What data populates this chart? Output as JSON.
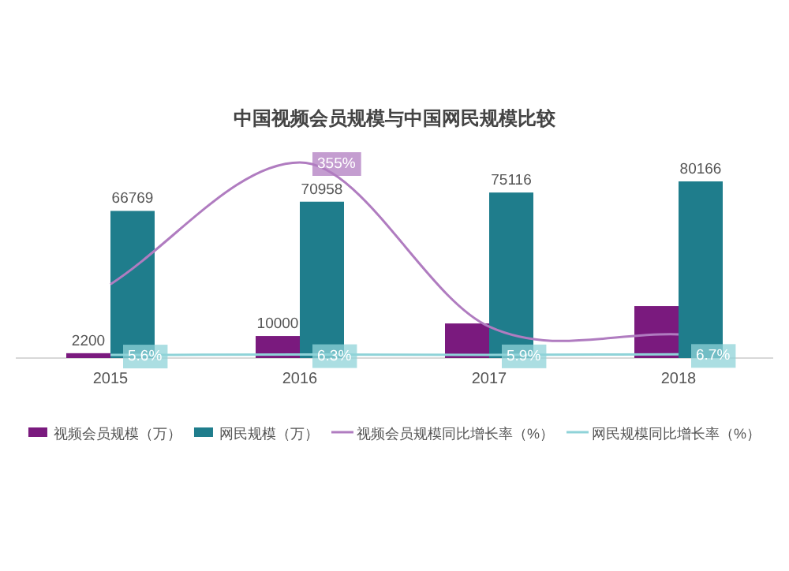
{
  "chart_data": {
    "type": "bar",
    "title": "中国视频会员规模与中国网民规模比较",
    "categories": [
      "2015",
      "2016",
      "2017",
      "2018"
    ],
    "legend": "bottom",
    "series": [
      {
        "name": "视频会员规模（万）",
        "color": "#7a1a7e",
        "values": [
          2200,
          10000,
          15700,
          23600
        ],
        "value_labels": [
          "2200",
          "10000",
          null,
          null
        ]
      },
      {
        "name": "网民规模（万）",
        "color": "#1f7d8c",
        "values": [
          66769,
          70958,
          75116,
          80166
        ],
        "value_labels": [
          "66769",
          "70958",
          "75116",
          "80166"
        ]
      },
      {
        "name": "视频会员规模同比增长率（%）",
        "type": "line",
        "axis": "y2",
        "color": "#b07cc0",
        "values": [
          134,
          355,
          57,
          43
        ],
        "value_labels": [
          null,
          "355%",
          null,
          null
        ]
      },
      {
        "name": "网民规模同比增长率（%）",
        "type": "line",
        "axis": "y2",
        "color": "#8fd3d8",
        "values": [
          5.6,
          6.3,
          5.9,
          6.7
        ],
        "value_labels": [
          "5.6%",
          "6.3%",
          "5.9%",
          "6.7%"
        ]
      }
    ]
  }
}
